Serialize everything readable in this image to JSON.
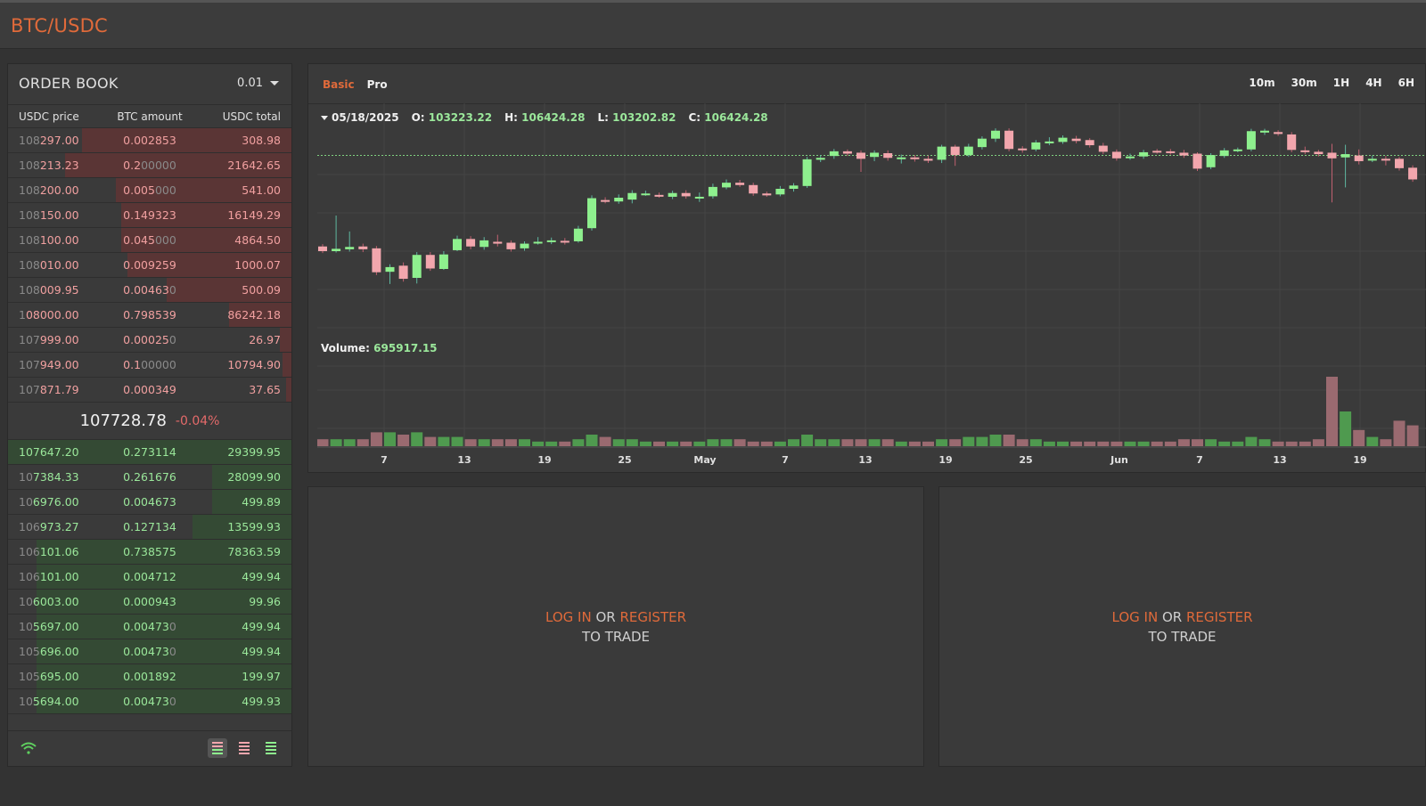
{
  "header": {
    "pair": "BTC/USDC"
  },
  "order_book": {
    "title": "ORDER BOOK",
    "precision": "0.01",
    "columns": [
      "USDC price",
      "BTC amount",
      "USDC total"
    ],
    "asks": [
      {
        "price_dim": "108",
        "price": "297.00",
        "amount": "0.002853",
        "amount_dim": "",
        "total": "308.98",
        "depth": 0.74
      },
      {
        "price_dim": "108",
        "price": "213.23",
        "amount": "0.2",
        "amount_dim": "00000",
        "total": "21642.65",
        "depth": 0.8
      },
      {
        "price_dim": "108",
        "price": "200.00",
        "amount": "0.005",
        "amount_dim": "000",
        "total": "541.00",
        "depth": 0.62
      },
      {
        "price_dim": "108",
        "price": "150.00",
        "amount": "0.149323",
        "amount_dim": "",
        "total": "16149.29",
        "depth": 0.6
      },
      {
        "price_dim": "108",
        "price": "100.00",
        "amount": "0.045",
        "amount_dim": "000",
        "total": "4864.50",
        "depth": 0.6
      },
      {
        "price_dim": "108",
        "price": "010.00",
        "amount": "0.009259",
        "amount_dim": "",
        "total": "1000.07",
        "depth": 0.58
      },
      {
        "price_dim": "108",
        "price": "009.95",
        "amount": "0.00463",
        "amount_dim": "0",
        "total": "500.09",
        "depth": 0.44
      },
      {
        "price_dim": "1",
        "price": "08000.00",
        "amount": "0.798539",
        "amount_dim": "",
        "total": "86242.18",
        "depth": 0.22
      },
      {
        "price_dim": "107",
        "price": "999.00",
        "amount": "0.00025",
        "amount_dim": "0",
        "total": "26.97",
        "depth": 0.04
      },
      {
        "price_dim": "107",
        "price": "949.00",
        "amount": "0.1",
        "amount_dim": "00000",
        "total": "10794.90",
        "depth": 0.03
      },
      {
        "price_dim": "107",
        "price": "871.79",
        "amount": "0.000349",
        "amount_dim": "",
        "total": "37.65",
        "depth": 0.02
      }
    ],
    "mid_price": "107728.78",
    "mid_change": "-0.04%",
    "bids": [
      {
        "price_dim": "",
        "price": "107647.20",
        "amount": "0.273114",
        "amount_dim": "",
        "total": "29399.95",
        "depth": 1.0
      },
      {
        "price_dim": "10",
        "price": "7384.33",
        "amount": "0.261676",
        "amount_dim": "",
        "total": "28099.90",
        "depth": 0.28
      },
      {
        "price_dim": "10",
        "price": "6976.00",
        "amount": "0.004673",
        "amount_dim": "",
        "total": "499.89",
        "depth": 0.28
      },
      {
        "price_dim": "106",
        "price": "973.27",
        "amount": "0.127134",
        "amount_dim": "",
        "total": "13599.93",
        "depth": 0.35
      },
      {
        "price_dim": "106",
        "price": "101.06",
        "amount": "0.738575",
        "amount_dim": "",
        "total": "78363.59",
        "depth": 0.9
      },
      {
        "price_dim": "106",
        "price": "101.00",
        "amount": "0.004712",
        "amount_dim": "",
        "total": "499.94",
        "depth": 0.9
      },
      {
        "price_dim": "10",
        "price": "6003.00",
        "amount": "0.000943",
        "amount_dim": "",
        "total": "99.96",
        "depth": 0.9
      },
      {
        "price_dim": "10",
        "price": "5697.00",
        "amount": "0.00473",
        "amount_dim": "0",
        "total": "499.94",
        "depth": 0.9
      },
      {
        "price_dim": "105",
        "price": "696.00",
        "amount": "0.00473",
        "amount_dim": "0",
        "total": "499.94",
        "depth": 0.9
      },
      {
        "price_dim": "105",
        "price": "695.00",
        "amount": "0.001892",
        "amount_dim": "",
        "total": "199.97",
        "depth": 0.9
      },
      {
        "price_dim": "10",
        "price": "5694.00",
        "amount": "0.00473",
        "amount_dim": "0",
        "total": "499.93",
        "depth": 0.9
      }
    ],
    "footer": {
      "wifi_icon": "wifi-icon",
      "view_icons": [
        "both-sides-icon",
        "asks-only-icon",
        "bids-only-icon"
      ]
    }
  },
  "chart": {
    "tabs": [
      "Basic",
      "Pro"
    ],
    "active_tab": "Basic",
    "intervals": [
      "10m",
      "30m",
      "1H",
      "4H",
      "6H"
    ],
    "ohlc": {
      "date": "05/18/2025",
      "o_label": "O:",
      "o": "103223.22",
      "h_label": "H:",
      "h": "106424.28",
      "l_label": "L:",
      "l": "103202.82",
      "c_label": "C:",
      "c": "106424.28"
    },
    "volume": {
      "label": "Volume:",
      "value": "695917.15"
    },
    "x_ticks": [
      "7",
      "13",
      "19",
      "25",
      "May",
      "7",
      "13",
      "19",
      "25",
      "Jun",
      "7",
      "13",
      "19"
    ],
    "colors": {
      "up": "#8ef08e",
      "down": "#f2a6ad",
      "up_vol": "#4f9a4f",
      "down_vol": "#9a6a70"
    }
  },
  "chart_data": {
    "type": "candlestick",
    "title": "",
    "xlabel": "",
    "ylabel": "",
    "last_price": 107728.78,
    "ylim": [
      74000,
      112000
    ],
    "candles": [
      {
        "o": 88300,
        "c": 87300,
        "h": 88800,
        "l": 86900,
        "v": 3
      },
      {
        "o": 87300,
        "c": 87800,
        "h": 94900,
        "l": 87000,
        "v": 3
      },
      {
        "o": 87700,
        "c": 88200,
        "h": 91500,
        "l": 87200,
        "v": 3
      },
      {
        "o": 88300,
        "c": 87700,
        "h": 88900,
        "l": 87100,
        "v": 3
      },
      {
        "o": 87900,
        "c": 82800,
        "h": 88400,
        "l": 82200,
        "v": 6
      },
      {
        "o": 82900,
        "c": 83900,
        "h": 84500,
        "l": 80300,
        "v": 6
      },
      {
        "o": 84200,
        "c": 81400,
        "h": 84900,
        "l": 80800,
        "v": 5
      },
      {
        "o": 81600,
        "c": 86500,
        "h": 87100,
        "l": 80400,
        "v": 6
      },
      {
        "o": 86500,
        "c": 83600,
        "h": 87100,
        "l": 83100,
        "v": 4
      },
      {
        "o": 83500,
        "c": 86600,
        "h": 87300,
        "l": 83300,
        "v": 4
      },
      {
        "o": 87500,
        "c": 89900,
        "h": 90600,
        "l": 87300,
        "v": 4
      },
      {
        "o": 89900,
        "c": 88300,
        "h": 90500,
        "l": 87700,
        "v": 3
      },
      {
        "o": 88200,
        "c": 89600,
        "h": 90300,
        "l": 87600,
        "v": 3
      },
      {
        "o": 89300,
        "c": 88900,
        "h": 90800,
        "l": 88300,
        "v": 3
      },
      {
        "o": 89100,
        "c": 87700,
        "h": 89600,
        "l": 87200,
        "v": 3
      },
      {
        "o": 87900,
        "c": 88900,
        "h": 89400,
        "l": 87400,
        "v": 3
      },
      {
        "o": 89100,
        "c": 89300,
        "h": 90300,
        "l": 88700,
        "v": 2
      },
      {
        "o": 89300,
        "c": 89600,
        "h": 90200,
        "l": 88800,
        "v": 2
      },
      {
        "o": 89500,
        "c": 89200,
        "h": 90100,
        "l": 88700,
        "v": 2
      },
      {
        "o": 89400,
        "c": 92100,
        "h": 92700,
        "l": 89100,
        "v": 3
      },
      {
        "o": 92200,
        "c": 98600,
        "h": 99200,
        "l": 91700,
        "v": 5
      },
      {
        "o": 98200,
        "c": 97900,
        "h": 98800,
        "l": 97500,
        "v": 4
      },
      {
        "o": 97900,
        "c": 98700,
        "h": 99400,
        "l": 97400,
        "v": 3
      },
      {
        "o": 98300,
        "c": 99700,
        "h": 100300,
        "l": 97500,
        "v": 3
      },
      {
        "o": 99600,
        "c": 99600,
        "h": 100200,
        "l": 99100,
        "v": 2
      },
      {
        "o": 99300,
        "c": 99000,
        "h": 99800,
        "l": 98700,
        "v": 2
      },
      {
        "o": 98900,
        "c": 99700,
        "h": 100200,
        "l": 98400,
        "v": 2
      },
      {
        "o": 99700,
        "c": 99000,
        "h": 100300,
        "l": 98500,
        "v": 2
      },
      {
        "o": 98900,
        "c": 98900,
        "h": 99800,
        "l": 97800,
        "v": 2
      },
      {
        "o": 99000,
        "c": 101000,
        "h": 101700,
        "l": 98500,
        "v": 3
      },
      {
        "o": 100900,
        "c": 101900,
        "h": 102600,
        "l": 100500,
        "v": 3
      },
      {
        "o": 101900,
        "c": 101400,
        "h": 102500,
        "l": 101000,
        "v": 3
      },
      {
        "o": 101400,
        "c": 99600,
        "h": 101900,
        "l": 99100,
        "v": 2
      },
      {
        "o": 99600,
        "c": 99200,
        "h": 100000,
        "l": 98900,
        "v": 2
      },
      {
        "o": 99400,
        "c": 100600,
        "h": 101200,
        "l": 99000,
        "v": 2
      },
      {
        "o": 100600,
        "c": 101300,
        "h": 101800,
        "l": 100000,
        "v": 3
      },
      {
        "o": 101200,
        "c": 106900,
        "h": 107400,
        "l": 100800,
        "v": 5
      },
      {
        "o": 106800,
        "c": 107200,
        "h": 107800,
        "l": 106300,
        "v": 3
      },
      {
        "o": 107600,
        "c": 108600,
        "h": 109100,
        "l": 107000,
        "v": 3
      },
      {
        "o": 108600,
        "c": 108100,
        "h": 109000,
        "l": 107600,
        "v": 3
      },
      {
        "o": 108300,
        "c": 107000,
        "h": 108800,
        "l": 104200,
        "v": 3
      },
      {
        "o": 107400,
        "c": 108300,
        "h": 108800,
        "l": 106500,
        "v": 3
      },
      {
        "o": 108200,
        "c": 107200,
        "h": 108800,
        "l": 106600,
        "v": 3
      },
      {
        "o": 107200,
        "c": 107300,
        "h": 107900,
        "l": 106000,
        "v": 2
      },
      {
        "o": 107300,
        "c": 107000,
        "h": 107800,
        "l": 106400,
        "v": 2
      },
      {
        "o": 107000,
        "c": 106600,
        "h": 107700,
        "l": 106100,
        "v": 2
      },
      {
        "o": 106800,
        "c": 109600,
        "h": 110000,
        "l": 106100,
        "v": 3
      },
      {
        "o": 109600,
        "c": 107800,
        "h": 110000,
        "l": 105500,
        "v": 3
      },
      {
        "o": 107800,
        "c": 109600,
        "h": 110200,
        "l": 107400,
        "v": 4
      },
      {
        "o": 109500,
        "c": 111300,
        "h": 111800,
        "l": 109000,
        "v": 4
      },
      {
        "o": 111300,
        "c": 113000,
        "h": 113500,
        "l": 110600,
        "v": 5
      },
      {
        "o": 113000,
        "c": 109100,
        "h": 113500,
        "l": 108600,
        "v": 5
      },
      {
        "o": 109200,
        "c": 108900,
        "h": 109700,
        "l": 108300,
        "v": 3
      },
      {
        "o": 109000,
        "c": 110500,
        "h": 111000,
        "l": 108600,
        "v": 3
      },
      {
        "o": 110300,
        "c": 110700,
        "h": 111600,
        "l": 109900,
        "v": 2
      },
      {
        "o": 110600,
        "c": 111500,
        "h": 112000,
        "l": 110200,
        "v": 2
      },
      {
        "o": 111300,
        "c": 110800,
        "h": 111900,
        "l": 110300,
        "v": 2
      },
      {
        "o": 111000,
        "c": 109900,
        "h": 111400,
        "l": 109400,
        "v": 2
      },
      {
        "o": 109800,
        "c": 108500,
        "h": 110400,
        "l": 108000,
        "v": 2
      },
      {
        "o": 108500,
        "c": 107100,
        "h": 109000,
        "l": 106600,
        "v": 2
      },
      {
        "o": 107300,
        "c": 107500,
        "h": 108100,
        "l": 106800,
        "v": 2
      },
      {
        "o": 107500,
        "c": 108400,
        "h": 108900,
        "l": 107000,
        "v": 2
      },
      {
        "o": 108700,
        "c": 108500,
        "h": 109100,
        "l": 108100,
        "v": 2
      },
      {
        "o": 108600,
        "c": 108400,
        "h": 109100,
        "l": 107900,
        "v": 2
      },
      {
        "o": 108300,
        "c": 107700,
        "h": 108900,
        "l": 107200,
        "v": 3
      },
      {
        "o": 108100,
        "c": 104900,
        "h": 108400,
        "l": 104400,
        "v": 3
      },
      {
        "o": 105200,
        "c": 107800,
        "h": 108200,
        "l": 104800,
        "v": 3
      },
      {
        "o": 107600,
        "c": 108800,
        "h": 109300,
        "l": 107200,
        "v": 2
      },
      {
        "o": 108800,
        "c": 109000,
        "h": 109400,
        "l": 108400,
        "v": 2
      },
      {
        "o": 109000,
        "c": 112900,
        "h": 113400,
        "l": 108600,
        "v": 4
      },
      {
        "o": 112600,
        "c": 113000,
        "h": 113400,
        "l": 112100,
        "v": 3
      },
      {
        "o": 112700,
        "c": 112300,
        "h": 113100,
        "l": 111900,
        "v": 2
      },
      {
        "o": 112200,
        "c": 108900,
        "h": 112700,
        "l": 108400,
        "v": 2
      },
      {
        "o": 108800,
        "c": 108500,
        "h": 109600,
        "l": 108000,
        "v": 2
      },
      {
        "o": 108500,
        "c": 108000,
        "h": 108900,
        "l": 107500,
        "v": 3
      },
      {
        "o": 108300,
        "c": 107100,
        "h": 110200,
        "l": 97700,
        "v": 30
      },
      {
        "o": 107300,
        "c": 108000,
        "h": 110000,
        "l": 100900,
        "v": 15
      },
      {
        "o": 107700,
        "c": 106500,
        "h": 109000,
        "l": 105800,
        "v": 7
      },
      {
        "o": 106900,
        "c": 107000,
        "h": 107700,
        "l": 106300,
        "v": 4
      },
      {
        "o": 107000,
        "c": 106900,
        "h": 107600,
        "l": 105600,
        "v": 3
      },
      {
        "o": 107000,
        "c": 105000,
        "h": 107400,
        "l": 104500,
        "v": 11
      },
      {
        "o": 105100,
        "c": 102600,
        "h": 105600,
        "l": 102100,
        "v": 9
      }
    ]
  },
  "trade_panels": [
    {
      "login": "LOG IN",
      "or": "OR",
      "register": "REGISTER",
      "to_trade": "TO TRADE"
    },
    {
      "login": "LOG IN",
      "or": "OR",
      "register": "REGISTER",
      "to_trade": "TO TRADE"
    }
  ]
}
